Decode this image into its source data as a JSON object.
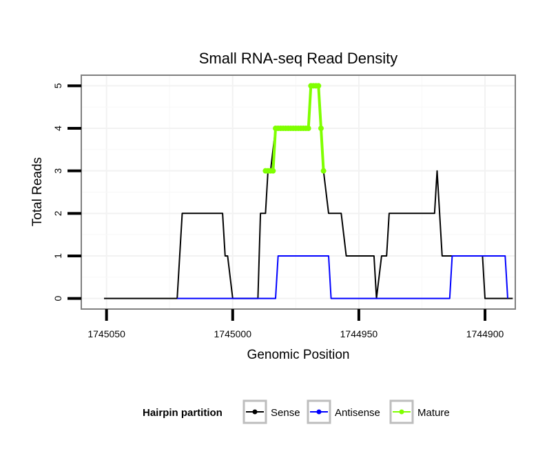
{
  "chart_data": {
    "type": "line",
    "title": "Small RNA-seq Read Density",
    "xlabel": "Genomic Position",
    "ylabel": "Total Reads",
    "xlim": [
      1745060,
      1744888
    ],
    "ylim": [
      -0.25,
      5.25
    ],
    "x_reversed": true,
    "x_ticks": [
      1745050,
      1745000,
      1744950,
      1744900
    ],
    "x_tick_labels": [
      "1745050",
      "1745000",
      "1744950",
      "1744900"
    ],
    "y_ticks": [
      0,
      1,
      2,
      3,
      4,
      5
    ],
    "y_tick_labels": [
      "0",
      "1",
      "2",
      "3",
      "4",
      "5"
    ],
    "grid": true,
    "legend": {
      "title": "Hairpin partition",
      "position": "bottom",
      "entries": [
        "Sense",
        "Antisense",
        "Mature"
      ]
    },
    "series": [
      {
        "name": "Sense",
        "color": "#000000",
        "points": [
          [
            1745051,
            0
          ],
          [
            1745022,
            0
          ],
          [
            1745020,
            2
          ],
          [
            1745004,
            2
          ],
          [
            1745003,
            1
          ],
          [
            1745002,
            1
          ],
          [
            1745000,
            0
          ],
          [
            1744990,
            0
          ],
          [
            1744989,
            2
          ],
          [
            1744987,
            2
          ],
          [
            1744986,
            3
          ],
          [
            1744985,
            3
          ],
          [
            1744983,
            4
          ],
          [
            1744970,
            4
          ],
          [
            1744969,
            5
          ],
          [
            1744966,
            5
          ],
          [
            1744965,
            4
          ],
          [
            1744964,
            3
          ],
          [
            1744962,
            2
          ],
          [
            1744957,
            2
          ],
          [
            1744955,
            1
          ],
          [
            1744944,
            1
          ],
          [
            1744943,
            0
          ],
          [
            1744941,
            1
          ],
          [
            1744939,
            1
          ],
          [
            1744938,
            2
          ],
          [
            1744920,
            2
          ],
          [
            1744919,
            3
          ],
          [
            1744917,
            1
          ],
          [
            1744901,
            1
          ],
          [
            1744900,
            0
          ],
          [
            1744889,
            0
          ]
        ]
      },
      {
        "name": "Antisense",
        "color": "#0000ff",
        "points": [
          [
            1745022,
            0
          ],
          [
            1744983,
            0
          ],
          [
            1744982,
            1
          ],
          [
            1744962,
            1
          ],
          [
            1744961,
            0
          ],
          [
            1744914,
            0
          ],
          [
            1744913,
            1
          ],
          [
            1744892,
            1
          ],
          [
            1744891,
            0
          ]
        ]
      },
      {
        "name": "Mature",
        "color": "#7fff00",
        "points": [
          [
            1744987,
            3
          ],
          [
            1744986,
            3
          ],
          [
            1744985,
            3
          ],
          [
            1744984,
            3
          ],
          [
            1744983,
            4
          ],
          [
            1744982,
            4
          ],
          [
            1744981,
            4
          ],
          [
            1744980,
            4
          ],
          [
            1744979,
            4
          ],
          [
            1744978,
            4
          ],
          [
            1744977,
            4
          ],
          [
            1744976,
            4
          ],
          [
            1744975,
            4
          ],
          [
            1744974,
            4
          ],
          [
            1744973,
            4
          ],
          [
            1744972,
            4
          ],
          [
            1744971,
            4
          ],
          [
            1744970,
            4
          ],
          [
            1744969,
            5
          ],
          [
            1744968,
            5
          ],
          [
            1744967,
            5
          ],
          [
            1744966,
            5
          ],
          [
            1744965,
            4
          ],
          [
            1744964,
            3
          ]
        ]
      }
    ]
  }
}
